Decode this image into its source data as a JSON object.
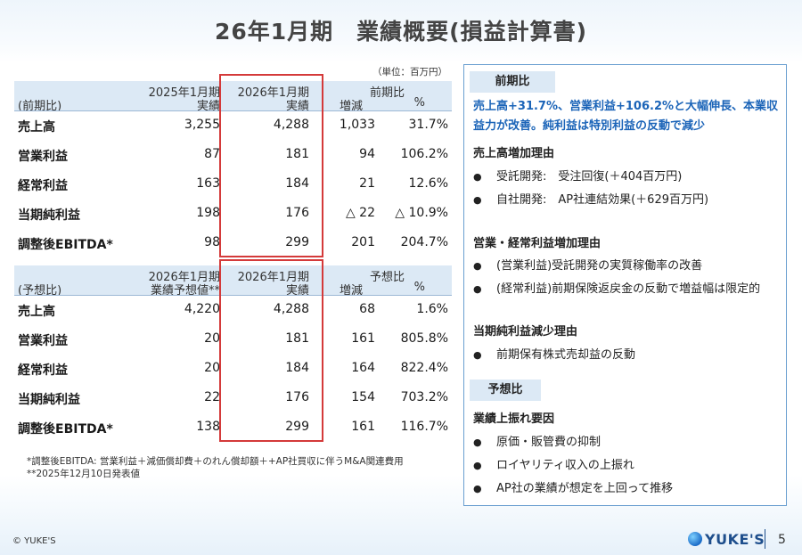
{
  "title": "26年1月期　業績概要(損益計算書)",
  "unit_note": "（単位：百万円）",
  "table1": {
    "header": {
      "row_label": "(前期比)",
      "col1_line1": "2025年1月期",
      "col1_line2": "実績",
      "col2_line1": "2026年1月期",
      "col2_line2": "実績",
      "group": "前期比",
      "col3": "増減",
      "col4": "%"
    },
    "rows": [
      {
        "label": "売上高",
        "c1": "3,255",
        "c2": "4,288",
        "c3": "1,033",
        "c4": "31.7%"
      },
      {
        "label": "営業利益",
        "c1": "87",
        "c2": "181",
        "c3": "94",
        "c4": "106.2%"
      },
      {
        "label": "経常利益",
        "c1": "163",
        "c2": "184",
        "c3": "21",
        "c4": "12.6%"
      },
      {
        "label": "当期純利益",
        "c1": "198",
        "c2": "176",
        "c3": "△ 22",
        "c4": "△ 10.9%"
      },
      {
        "label": "調整後EBITDA*",
        "c1": "98",
        "c2": "299",
        "c3": "201",
        "c4": "204.7%"
      }
    ]
  },
  "table2": {
    "header": {
      "row_label": "(予想比)",
      "col1_line1": "2026年1月期",
      "col1_line2": "業績予想値**",
      "col2_line1": "2026年1月期",
      "col2_line2": "実績",
      "group": "予想比",
      "col3": "増減",
      "col4": "%"
    },
    "rows": [
      {
        "label": "売上高",
        "c1": "4,220",
        "c2": "4,288",
        "c3": "68",
        "c4": "1.6%"
      },
      {
        "label": "営業利益",
        "c1": "20",
        "c2": "181",
        "c3": "161",
        "c4": "805.8%"
      },
      {
        "label": "経常利益",
        "c1": "20",
        "c2": "184",
        "c3": "164",
        "c4": "822.4%"
      },
      {
        "label": "当期純利益",
        "c1": "22",
        "c2": "176",
        "c3": "154",
        "c4": "703.2%"
      },
      {
        "label": "調整後EBITDA*",
        "c1": "138",
        "c2": "299",
        "c3": "161",
        "c4": "116.7%"
      }
    ]
  },
  "footnotes": {
    "line1": "*調整後EBITDA: 営業利益＋減価償却費＋のれん償却額＋+AP社買収に伴うM&A関連費用",
    "line2": "**2025年12月10日発表値"
  },
  "panel": {
    "tag1": "前期比",
    "highlight": "売上高+31.7%、営業利益+106.2%と大幅伸長、本業収益力が改善。純利益は特別利益の反動で減少",
    "sales_head": "売上高増加理由",
    "sales_items": [
      "受託開発:　受注回復(＋404百万円)",
      "自社開発:　AP社連結効果(＋629百万円)"
    ],
    "profit_head": "営業・経常利益増加理由",
    "profit_items": [
      "(営業利益)受託開発の実質稼働率の改善",
      "(経常利益)前期保険返戻金の反動で増益幅は限定的"
    ],
    "net_head": "当期純利益減少理由",
    "net_items": [
      "前期保有株式売却益の反動"
    ],
    "tag2": "予想比",
    "upside_head": "業績上振れ要因",
    "upside_items": [
      "原価・販管費の抑制",
      "ロイヤリティ収入の上振れ",
      "AP社の業績が想定を上回って推移"
    ]
  },
  "footer": {
    "copyright": "© YUKE'S",
    "logo": "YUKE'S",
    "page_number": "5"
  },
  "colors": {
    "accent_blue": "#1b64b8",
    "highlight_red": "#d43a3a",
    "header_fill": "#dce9f5"
  }
}
